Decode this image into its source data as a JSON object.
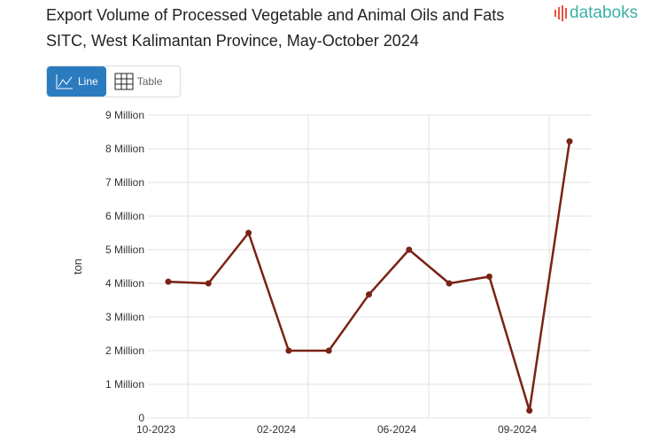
{
  "title": "Export Volume of Processed Vegetable and Animal Oils and Fats SITC, West Kalimantan Province, May-October 2024",
  "logo": "databoks",
  "toggle": {
    "line_label": "Line",
    "table_label": "Table",
    "active": "Line"
  },
  "colors": {
    "line": "#7a2315",
    "accent": "#2b7bbf",
    "logo": "#3bb0a6"
  },
  "chart_data": {
    "type": "line",
    "title": "Export Volume of Processed Vegetable and Animal Oils and Fats SITC, West Kalimantan Province, May-October 2024",
    "ylabel": "ton",
    "ylim": [
      0,
      9000000
    ],
    "yticks": [
      "0",
      "1 Million",
      "2 Million",
      "3 Million",
      "4 Million",
      "5 Million",
      "6 Million",
      "7 Million",
      "8 Million",
      "9 Million"
    ],
    "xticks": [
      "10-2023",
      "02-2024",
      "06-2024",
      "09-2024"
    ],
    "grid": true,
    "series": [
      {
        "values": [
          4050000,
          4000000,
          5500000,
          2000000,
          2000000,
          3670000,
          5000000,
          4000000,
          4200000,
          220000,
          8220000
        ]
      }
    ]
  }
}
